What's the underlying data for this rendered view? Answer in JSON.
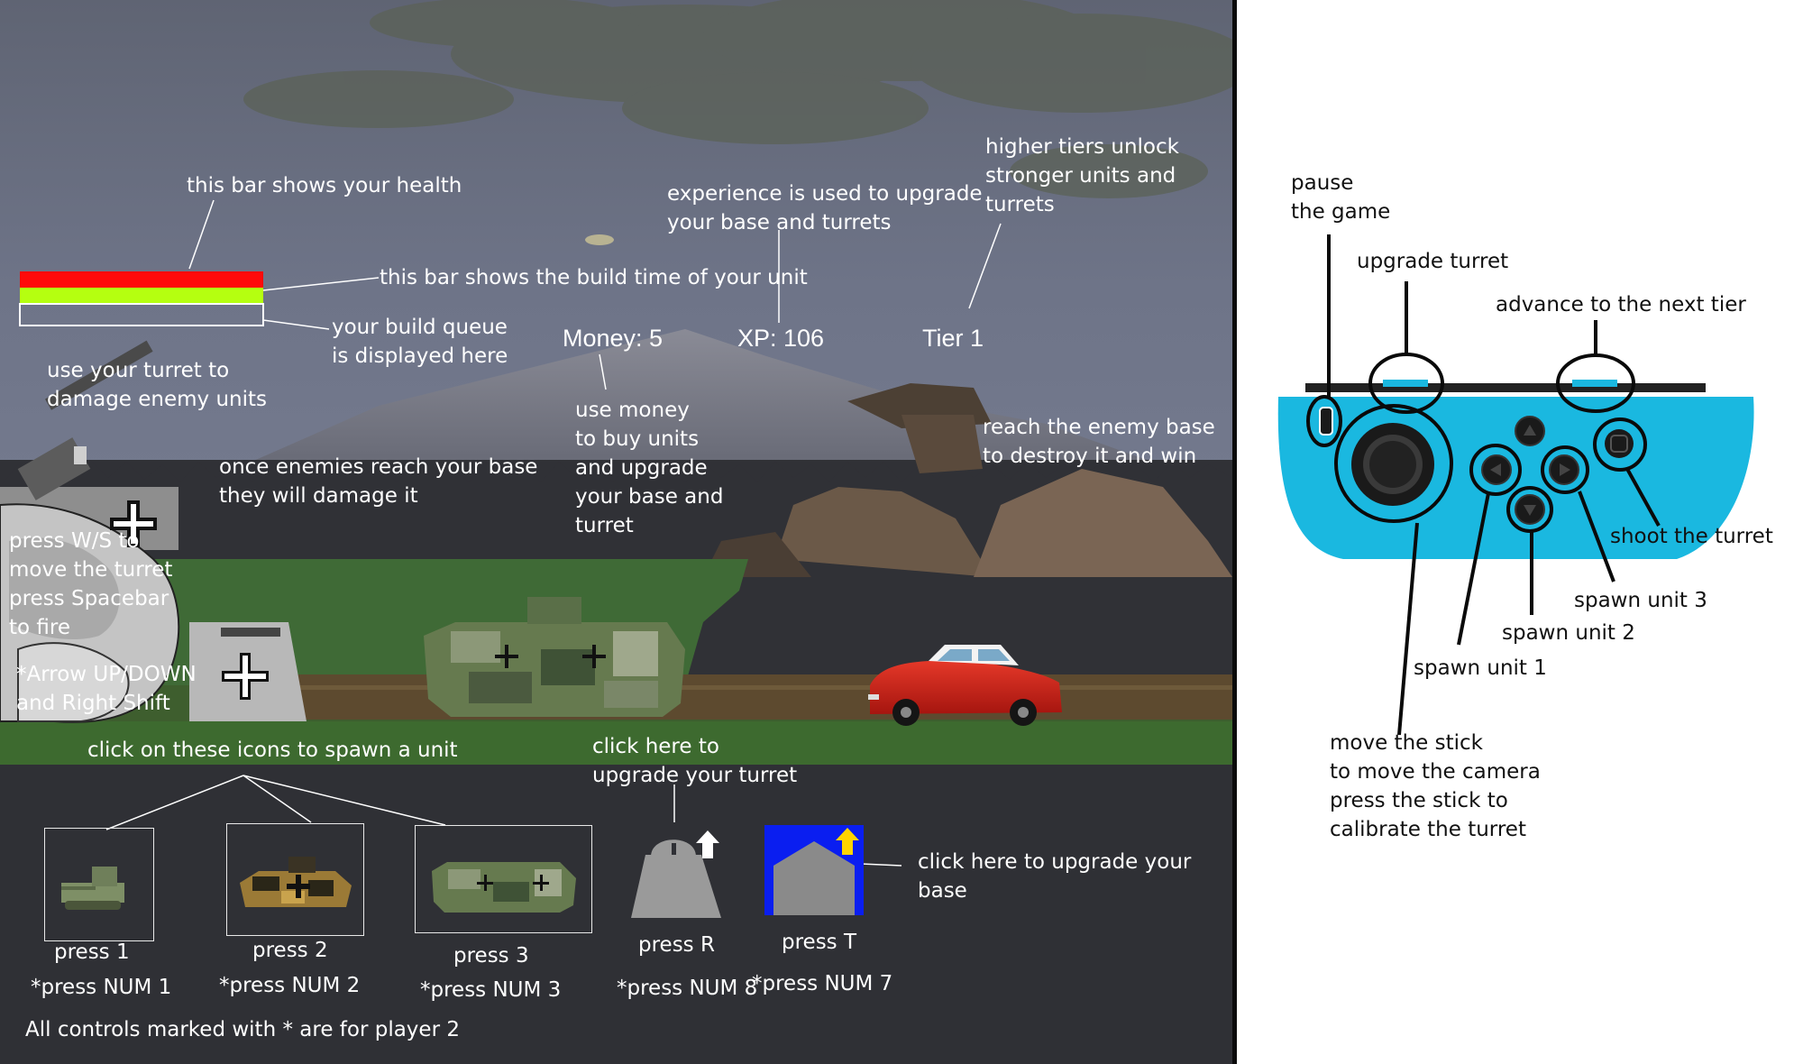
{
  "colors": {
    "health_bar": "#ff0a0a",
    "build_time_bar": "#b5ff10",
    "joycon_body": "#1ab8e0",
    "base_upgrade_icon_bg": "#0a1ef0",
    "upgrade_arrow": "#ffd400",
    "sky": "#6b7186",
    "ground": "#303136"
  },
  "game": {
    "hud": {
      "money": "Money: 5",
      "xp": "XP: 106",
      "tier": "Tier 1"
    },
    "annotations": {
      "health_bar": "this bar shows your health",
      "build_time": "this bar shows the build time of your unit",
      "build_queue": "your build queue\nis displayed here",
      "experience": "experience is used to upgrade\nyour base and turrets",
      "tiers": "higher tiers unlock\nstronger units and\nturrets",
      "turret": "use your turret to\ndamage enemy units",
      "base_damage": "once enemies reach your base\nthey will damage it",
      "money": "use money\nto buy units\nand upgrade\nyour base and\nturret",
      "enemy_base": "reach the enemy base\nto destroy it and win",
      "turret_keys": "press W/S to\nmove the turret\npress Spacebar\nto fire",
      "p2_turret_keys": "*Arrow UP/DOWN\nand Right Shift",
      "spawn_icons": "click on these icons to spawn a unit",
      "upgrade_turret": "click here to\nupgrade your turret",
      "upgrade_base": "click here to upgrade your base",
      "player2_note": "All controls marked with * are for player 2"
    },
    "spawn_units": [
      {
        "key": "press 1",
        "p2_key": "*press NUM 1",
        "icon": "small-tank-icon"
      },
      {
        "key": "press 2",
        "p2_key": "*press NUM 2",
        "icon": "camo-tank-icon"
      },
      {
        "key": "press 3",
        "p2_key": "*press NUM 3",
        "icon": "heavy-tank-icon"
      }
    ],
    "upgrades": [
      {
        "key": "press R",
        "p2_key": "*press NUM 8",
        "icon": "turret-upgrade-icon"
      },
      {
        "key": "press T",
        "p2_key": "*press NUM 7",
        "icon": "base-upgrade-icon"
      }
    ]
  },
  "controller": {
    "icon": "joy-con-icon",
    "labels": {
      "pause": "pause\nthe game",
      "upgrade_turret": "upgrade turret",
      "next_tier": "advance to the next tier",
      "shoot": "shoot the turret",
      "spawn3": "spawn unit 3",
      "spawn2": "spawn unit 2",
      "spawn1": "spawn unit 1",
      "stick": "move the stick\nto move the camera\npress the stick to\ncalibrate the turret"
    }
  }
}
